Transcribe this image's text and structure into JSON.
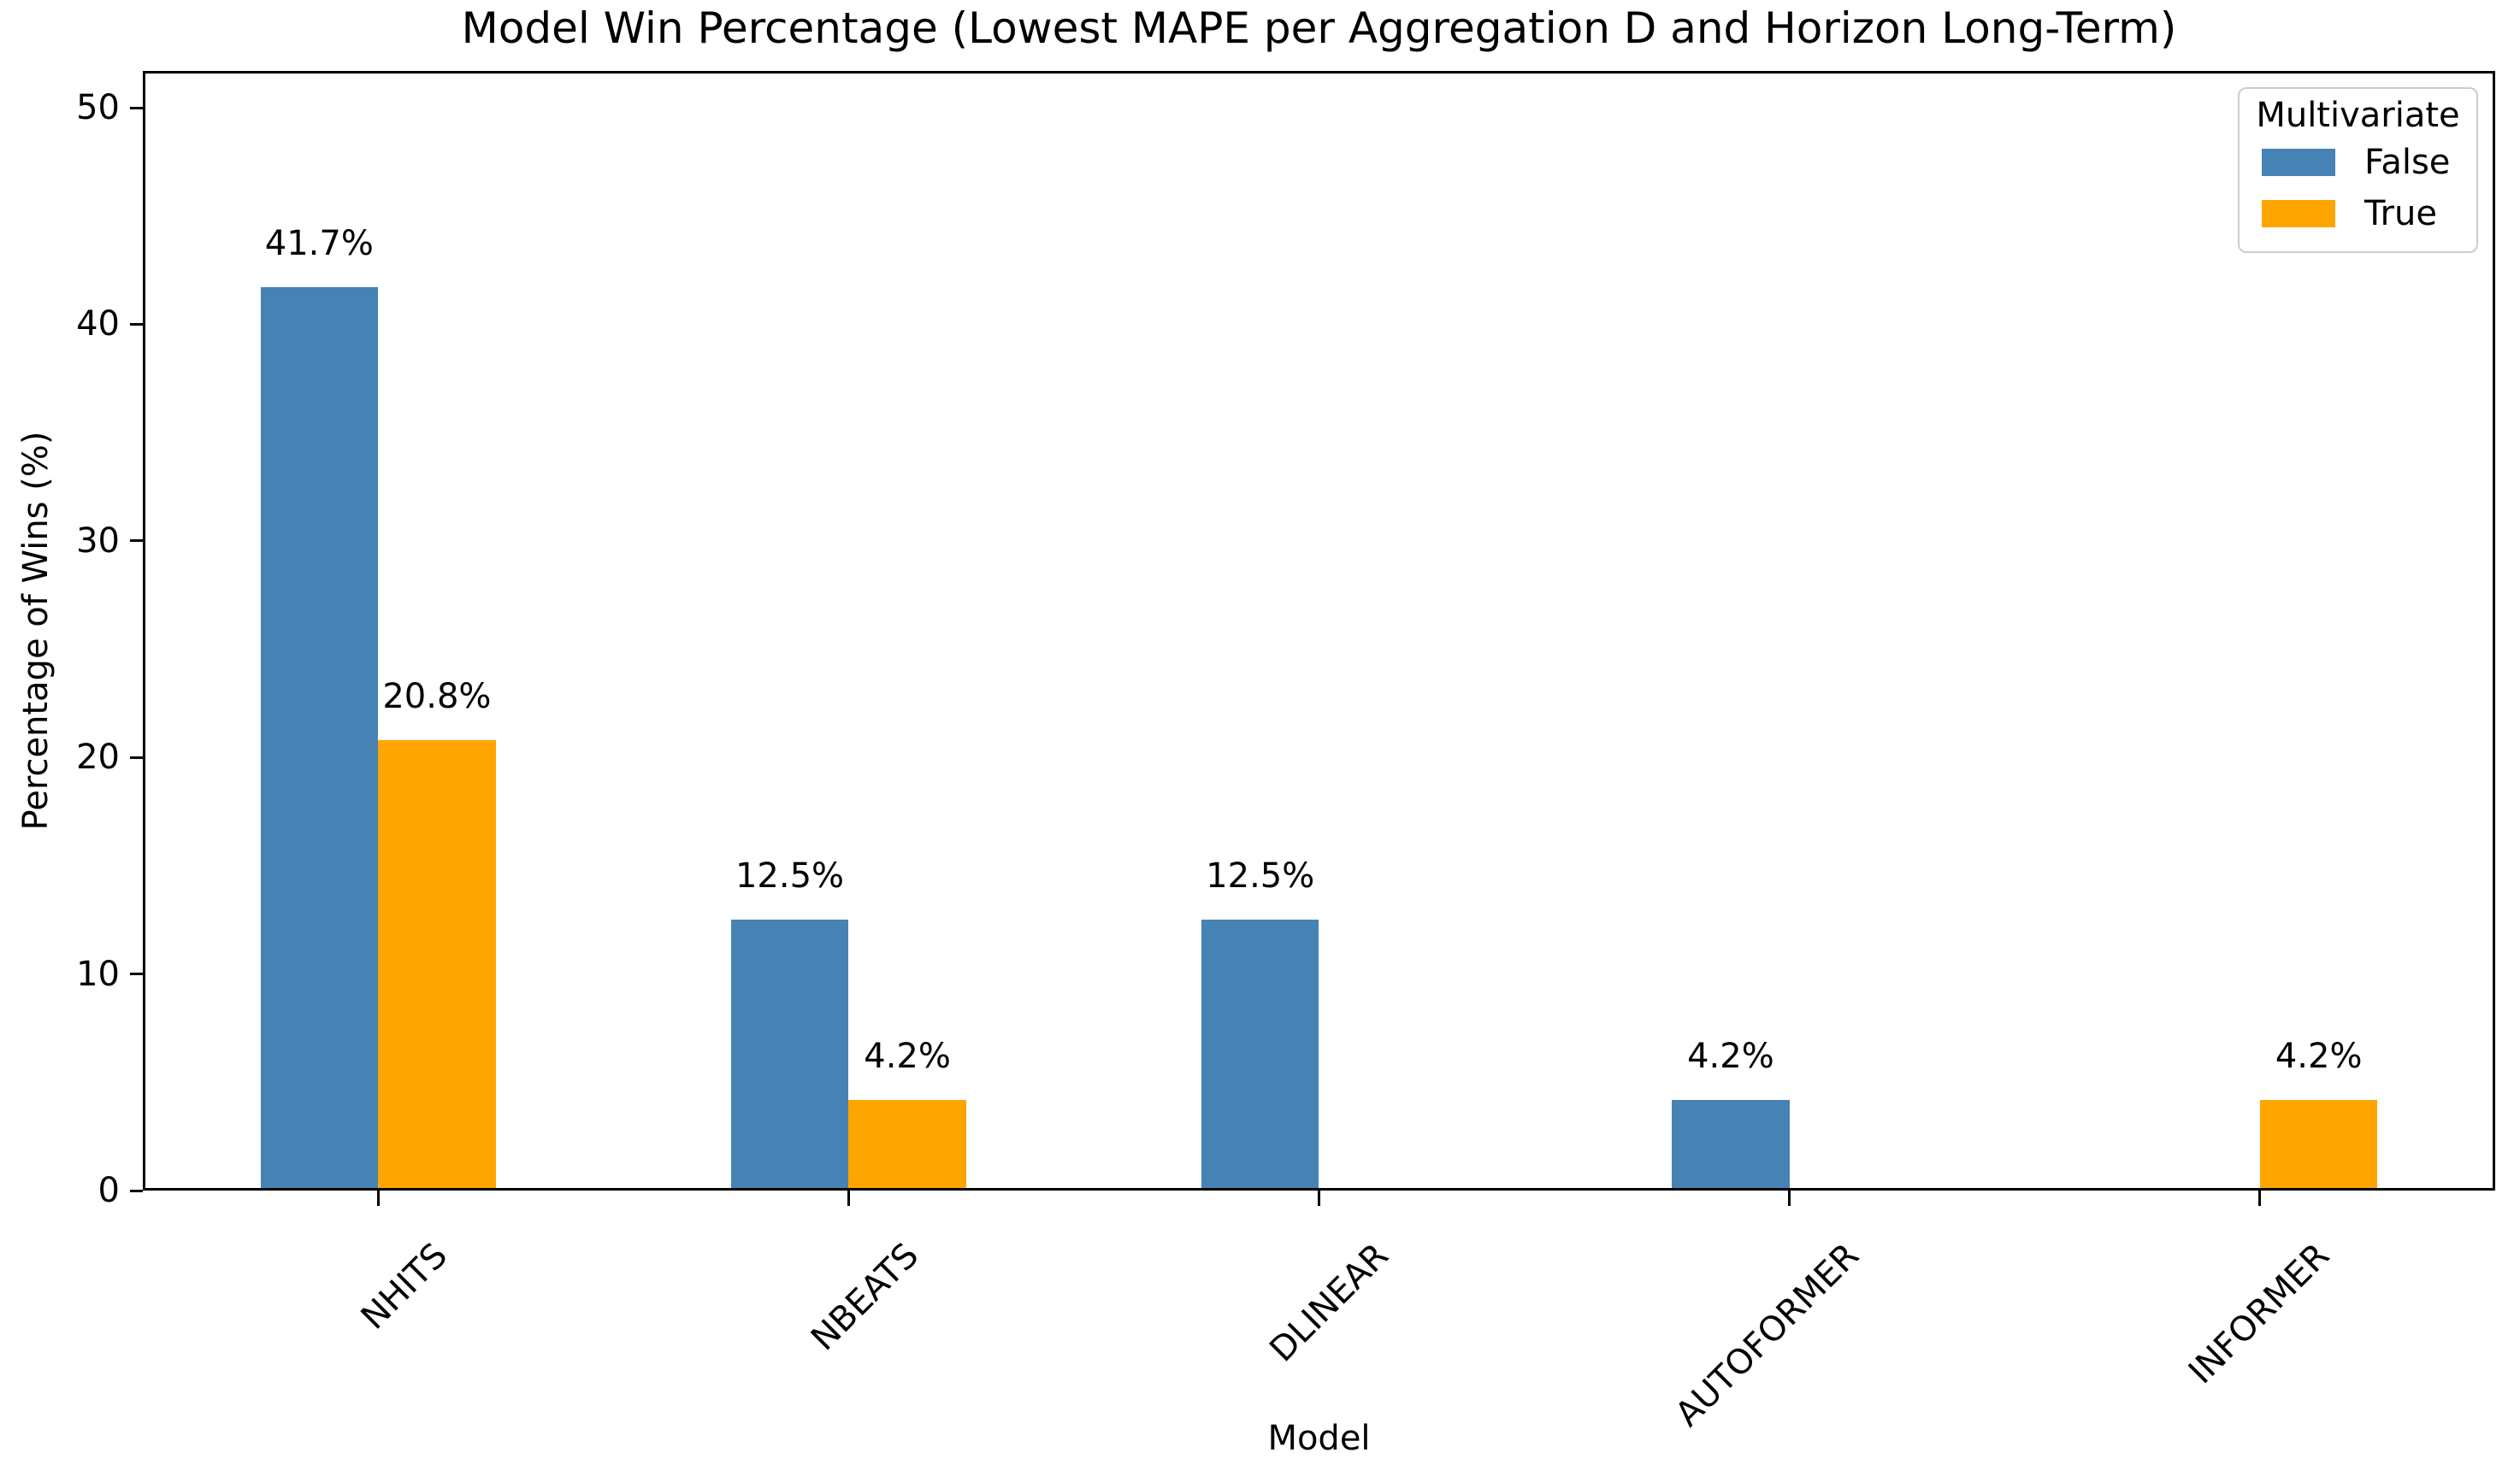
{
  "chart_data": {
    "type": "bar",
    "title": "Model Win Percentage (Lowest MAPE per Aggregation D and Horizon Long-Term)",
    "xlabel": "Model",
    "ylabel": "Percentage of Wins (%)",
    "categories": [
      "NHITS",
      "NBEATS",
      "DLINEAR",
      "AUTOFORMER",
      "INFORMER"
    ],
    "series": [
      {
        "name": "False",
        "color": "#4682B4",
        "values": [
          41.7,
          12.5,
          12.5,
          4.2,
          null
        ],
        "bar_labels": [
          "41.7%",
          "12.5%",
          "12.5%",
          "4.2%",
          null
        ]
      },
      {
        "name": "True",
        "color": "#FFA500",
        "values": [
          20.8,
          4.2,
          null,
          null,
          4.2
        ],
        "bar_labels": [
          "20.8%",
          "4.2%",
          null,
          null,
          "4.2%"
        ]
      }
    ],
    "ylim": [
      0,
      51.7
    ],
    "yticks": [
      0,
      10,
      20,
      30,
      40,
      50
    ],
    "grid": false,
    "legend": {
      "title": "Multivariate",
      "position": "upper right"
    }
  }
}
